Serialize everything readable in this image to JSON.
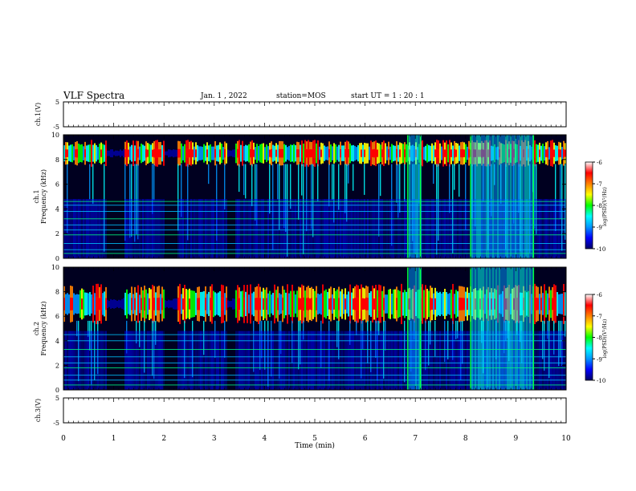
{
  "header": {
    "title": "VLF Spectra",
    "date": "Jan. 1 , 2022",
    "station": "station=MOS",
    "start": "start UT = 1 : 20 : 1"
  },
  "colors": {
    "background": "#000020",
    "colormap": [
      "#000066",
      "#0000ff",
      "#0096ff",
      "#00ffff",
      "#00ff00",
      "#ffff00",
      "#ff8000",
      "#ff0000",
      "#ffffff"
    ]
  },
  "chart_data": [
    {
      "type": "line",
      "panel": "ch1-waveform",
      "ylabel": "ch.1(V)",
      "ylim": [
        -5,
        5
      ],
      "yticks": [
        "5",
        "-5"
      ],
      "x": [
        0,
        10
      ],
      "values": [
        0,
        0
      ]
    },
    {
      "type": "heatmap",
      "panel": "ch1-spectrogram",
      "ylabel": "ch.1 Frequency (kHz)",
      "ylim": [
        0,
        10
      ],
      "yticks": [
        "0",
        "2",
        "4",
        "6",
        "8",
        "10"
      ],
      "colorbar": {
        "label": "log(PSD)(V²/Hz)",
        "ticks": [
          "-6",
          "-7",
          "-8",
          "-9",
          "-10"
        ],
        "range": [
          -10,
          -6
        ]
      },
      "bright_band_khz": [
        7.5,
        9.5
      ],
      "carrier_lines_khz": [
        0.4,
        0.7,
        1.2,
        1.9,
        2.3,
        2.7,
        3.2,
        3.8,
        4.3,
        4.6
      ],
      "noise_bursts_min": [
        {
          "start": 6.85,
          "end": 7.1
        },
        {
          "start": 8.1,
          "end": 9.35
        }
      ],
      "gaps_min": [
        {
          "start": 0.85,
          "end": 1.2
        },
        {
          "start": 2.0,
          "end": 2.25
        },
        {
          "start": 3.25,
          "end": 3.4
        }
      ]
    },
    {
      "type": "heatmap",
      "panel": "ch2-spectrogram",
      "ylabel": "ch.2 Frequency (kHz)",
      "ylim": [
        0,
        10
      ],
      "yticks": [
        "0",
        "2",
        "4",
        "6",
        "8",
        "10"
      ],
      "colorbar": {
        "label": "log(PSD)(V²/Hz)",
        "ticks": [
          "-6",
          "-7",
          "-8",
          "-9",
          "-10"
        ],
        "range": [
          -10,
          -6
        ]
      },
      "bright_band_khz": [
        5.5,
        8.5
      ],
      "carrier_lines_khz": [
        0.4,
        0.8,
        1.2,
        1.8,
        2.2,
        2.7,
        3.3,
        4.0,
        4.5
      ],
      "noise_bursts_min": [
        {
          "start": 6.85,
          "end": 7.1
        },
        {
          "start": 8.1,
          "end": 9.35
        }
      ],
      "gaps_min": [
        {
          "start": 0.85,
          "end": 1.2
        },
        {
          "start": 2.0,
          "end": 2.25
        },
        {
          "start": 3.25,
          "end": 3.4
        }
      ]
    },
    {
      "type": "line",
      "panel": "ch3-waveform",
      "ylabel": "ch.3(V)",
      "ylim": [
        -5,
        5
      ],
      "yticks": [
        "5",
        "-5"
      ],
      "x": [
        0,
        10
      ],
      "values": [
        0,
        0
      ]
    }
  ],
  "xaxis": {
    "label": "Time (min)",
    "range": [
      0,
      10
    ],
    "ticks": [
      "0",
      "1",
      "2",
      "3",
      "4",
      "5",
      "6",
      "7",
      "8",
      "9",
      "10"
    ]
  }
}
